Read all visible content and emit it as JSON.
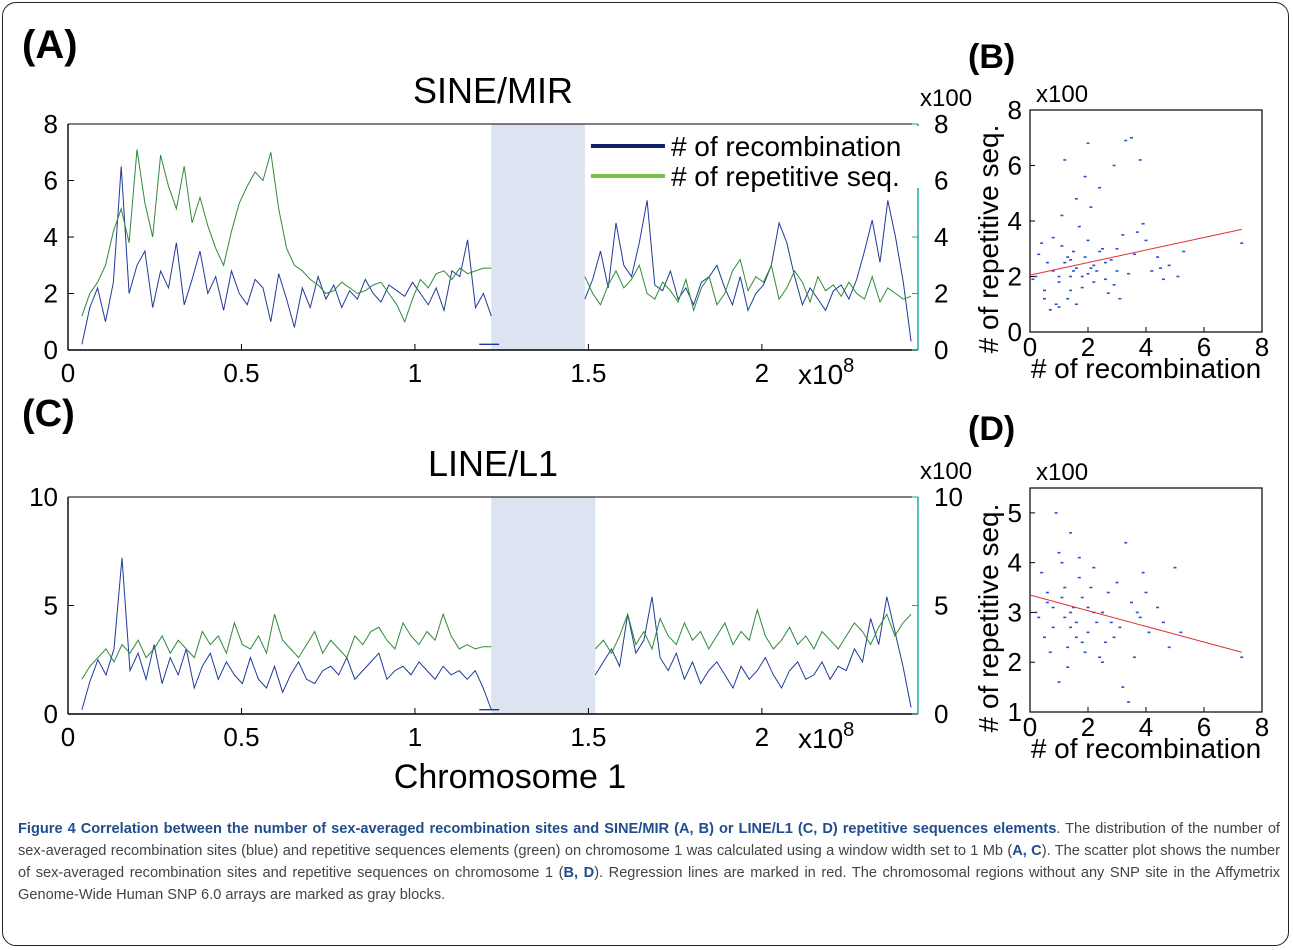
{
  "panel_labels": {
    "a": "(A)",
    "b": "(B)",
    "c": "(C)",
    "d": "(D)"
  },
  "chrom_label": "Chromosome 1",
  "caption": {
    "title": "Figure 4 Correlation between the number of sex-averaged recombination sites and SINE/MIR (A, B) or LINE/L1 (C, D) repetitive sequences elements",
    "s1": ". The distribution of the number of sex-averaged recombination sites (blue) and repetitive sequences elements (green) on chromosome 1 was calculated using a window width set to 1 Mb (",
    "b1": "A, C",
    "s2": "). The scatter plot shows the number of sex-averaged recombination sites and repetitive sequences on chromosome 1 (",
    "b2": "B, D",
    "s3": "). Regression lines are marked in red. The chromosomal regions without any SNP site in the Affymetrix Genome-Wide Human SNP 6.0 arrays are marked as gray blocks."
  },
  "colors": {
    "recombination": "#1f3b9a",
    "repetitive": "#2e8b3a",
    "gap": "#dbe4f0",
    "regression": "#e03030",
    "legend_blue": "#13206b",
    "legend_green": "#7cc24a",
    "right_axis": "#1aa0a0"
  },
  "chart_data": [
    {
      "id": "A",
      "type": "line",
      "title": "SINE/MIR",
      "x_ticks": [
        "0",
        "0.5",
        "1",
        "1.5",
        "2"
      ],
      "x_multiplier": "x10",
      "x_multiplier_exp": "8",
      "xlim": [
        0,
        245000000.0
      ],
      "x_tick_values": [
        0,
        50000000.0,
        100000000.0,
        150000000.0,
        200000000.0
      ],
      "ylim_left": [
        0,
        8
      ],
      "y_left_ticks": [
        "0",
        "2",
        "4",
        "6",
        "8"
      ],
      "ylim_right": [
        0,
        800
      ],
      "y_right_ticks": [
        "0",
        "2",
        "4",
        "6",
        "8"
      ],
      "y_right_multiplier": "x100",
      "gap": [
        122000000.0,
        149000000.0
      ],
      "legend": [
        "# of recombination",
        "# of repetitive seq."
      ],
      "legend_position": "top-right",
      "series": [
        {
          "name": "# of recombination",
          "x_start": 4000000.0,
          "x_end": 243000000.0,
          "values": [
            0.2,
            1.5,
            2.2,
            1.0,
            2.4,
            6.5,
            2.0,
            3.0,
            3.5,
            1.5,
            2.8,
            2.2,
            3.8,
            1.6,
            2.5,
            3.5,
            2.0,
            2.6,
            1.4,
            2.8,
            2.0,
            1.6,
            2.5,
            2.2,
            1.0,
            2.7,
            1.8,
            0.8,
            2.2,
            1.5,
            2.6,
            1.8,
            2.3,
            1.5,
            2.1,
            1.8,
            2.5,
            2.0,
            1.7,
            2.3,
            2.1,
            1.9,
            2.4,
            2.0,
            1.6,
            2.2,
            1.4,
            2.8,
            2.6,
            3.9,
            1.5,
            2.0,
            1.2
          ],
          "seg2_x_start": 149000000.0,
          "seg2_values": [
            1.8,
            2.5,
            3.5,
            2.2,
            4.5,
            3.0,
            2.6,
            3.8,
            5.3,
            2.3,
            2.1,
            2.8,
            1.8,
            2.2,
            1.6,
            2.4,
            2.6,
            3.0,
            2.2,
            1.6,
            2.6,
            1.4,
            2.0,
            2.3,
            3.0,
            4.5,
            3.8,
            2.6,
            1.6,
            2.2,
            1.8,
            1.4,
            2.1,
            2.3,
            1.8,
            2.5,
            3.5,
            4.6,
            3.1,
            5.3,
            4.0,
            2.4,
            0.3
          ]
        },
        {
          "name": "# of repetitive seq.",
          "x_start": 4000000.0,
          "x_end": 243000000.0,
          "values": [
            1.2,
            2.0,
            2.4,
            3.0,
            4.2,
            5.0,
            3.8,
            7.1,
            5.2,
            4.0,
            6.9,
            5.8,
            5.0,
            6.5,
            4.5,
            5.4,
            4.4,
            3.6,
            3.0,
            4.2,
            5.2,
            5.8,
            6.3,
            6.0,
            7.0,
            5.0,
            3.6,
            3.0,
            2.8,
            2.5,
            2.3,
            2.0,
            2.1,
            2.4,
            2.2,
            2.0,
            2.1,
            2.3,
            2.4,
            2.0,
            1.6,
            1.0,
            1.8,
            2.5,
            2.2,
            2.7,
            2.8,
            2.5,
            2.9,
            2.7,
            2.8,
            2.9,
            2.9
          ],
          "seg2_x_start": 149000000.0,
          "seg2_values": [
            2.6,
            2.0,
            1.6,
            2.3,
            2.8,
            2.2,
            2.5,
            3.0,
            2.0,
            1.8,
            2.4,
            2.1,
            1.7,
            2.5,
            1.4,
            2.2,
            2.6,
            1.6,
            2.0,
            2.8,
            3.2,
            2.1,
            2.6,
            2.4,
            3.0,
            1.8,
            2.2,
            2.8,
            2.4,
            1.7,
            2.6,
            2.1,
            2.3,
            1.9,
            2.4,
            2.0,
            1.8,
            2.6,
            1.7,
            2.2,
            2.0,
            1.8,
            1.9
          ]
        }
      ]
    },
    {
      "id": "B",
      "type": "scatter",
      "x_ticks": [
        "0",
        "2",
        "4",
        "6",
        "8"
      ],
      "xlim": [
        0,
        8
      ],
      "y_ticks": [
        "0",
        "2",
        "4",
        "6",
        "8"
      ],
      "ylim": [
        0,
        8
      ],
      "y_multiplier": "x100",
      "xlabel": "# of recombination",
      "ylabel": "# of repetitive seq.",
      "regression": {
        "x": [
          0,
          7.3
        ],
        "y": [
          2.05,
          3.7
        ]
      },
      "points": [
        [
          0.3,
          2.8
        ],
        [
          0.5,
          1.5
        ],
        [
          0.8,
          2.2
        ],
        [
          1.0,
          1.8
        ],
        [
          1.2,
          2.5
        ],
        [
          1.4,
          2.0
        ],
        [
          1.6,
          2.3
        ],
        [
          1.8,
          1.6
        ],
        [
          2.0,
          2.1
        ],
        [
          2.2,
          2.4
        ],
        [
          1.1,
          3.1
        ],
        [
          1.5,
          2.9
        ],
        [
          1.9,
          2.7
        ],
        [
          2.3,
          2.2
        ],
        [
          2.6,
          1.9
        ],
        [
          1.3,
          1.2
        ],
        [
          0.9,
          1.0
        ],
        [
          0.6,
          2.5
        ],
        [
          1.7,
          3.8
        ],
        [
          2.1,
          4.5
        ],
        [
          0.7,
          0.8
        ],
        [
          1.0,
          0.9
        ],
        [
          1.4,
          1.5
        ],
        [
          2.5,
          3.0
        ],
        [
          2.8,
          2.6
        ],
        [
          3.0,
          2.2
        ],
        [
          3.3,
          6.9
        ],
        [
          3.5,
          7.0
        ],
        [
          2.4,
          5.2
        ],
        [
          1.2,
          6.2
        ],
        [
          1.6,
          4.8
        ],
        [
          0.4,
          3.2
        ],
        [
          3.8,
          6.2
        ],
        [
          2.0,
          6.8
        ],
        [
          2.9,
          6.0
        ],
        [
          1.9,
          5.6
        ],
        [
          3.2,
          3.5
        ],
        [
          3.6,
          2.8
        ],
        [
          4.0,
          3.3
        ],
        [
          4.4,
          2.7
        ],
        [
          4.8,
          2.4
        ],
        [
          5.1,
          2.0
        ],
        [
          5.3,
          2.9
        ],
        [
          7.3,
          3.2
        ],
        [
          4.6,
          1.9
        ],
        [
          3.1,
          1.2
        ],
        [
          2.7,
          1.4
        ],
        [
          0.2,
          2.0
        ],
        [
          0.1,
          1.9
        ],
        [
          1.5,
          2.2
        ],
        [
          1.8,
          2.0
        ],
        [
          2.2,
          1.8
        ],
        [
          1.3,
          2.7
        ],
        [
          2.6,
          2.5
        ],
        [
          3.4,
          2.1
        ],
        [
          3.9,
          3.9
        ],
        [
          4.2,
          2.2
        ],
        [
          0.8,
          3.4
        ],
        [
          1.1,
          4.2
        ],
        [
          2.0,
          3.3
        ],
        [
          2.4,
          2.9
        ],
        [
          1.6,
          1.0
        ],
        [
          2.9,
          1.7
        ],
        [
          0.5,
          1.2
        ],
        [
          1.0,
          2.0
        ],
        [
          1.4,
          2.6
        ],
        [
          2.1,
          2.3
        ],
        [
          3.0,
          3.0
        ],
        [
          3.7,
          3.6
        ],
        [
          4.5,
          2.3
        ]
      ]
    },
    {
      "id": "C",
      "type": "line",
      "title": "LINE/L1",
      "x_ticks": [
        "0",
        "0.5",
        "1",
        "1.5",
        "2"
      ],
      "x_multiplier": "x10",
      "x_multiplier_exp": "8",
      "xlim": [
        0,
        245000000.0
      ],
      "x_tick_values": [
        0,
        50000000.0,
        100000000.0,
        150000000.0,
        200000000.0
      ],
      "ylim_left": [
        0,
        10
      ],
      "y_left_ticks": [
        "0",
        "5",
        "10"
      ],
      "ylim_right": [
        0,
        1000
      ],
      "y_right_ticks": [
        "0",
        "5",
        "10"
      ],
      "y_right_multiplier": "x100",
      "gap": [
        122000000.0,
        152000000.0
      ],
      "series": [
        {
          "name": "recombination",
          "x_start": 4000000.0,
          "x_end": 243000000.0,
          "values": [
            0.2,
            1.5,
            2.5,
            1.8,
            3.0,
            7.2,
            2.0,
            2.8,
            1.6,
            3.2,
            1.4,
            2.6,
            1.8,
            3.0,
            1.2,
            2.2,
            2.8,
            1.6,
            2.4,
            1.8,
            1.4,
            2.6,
            1.6,
            1.2,
            2.2,
            1.0,
            1.8,
            2.4,
            1.6,
            1.4,
            2.0,
            2.2,
            1.8,
            2.6,
            1.6,
            2.0,
            2.4,
            2.8,
            1.6,
            2.0,
            2.2,
            1.8,
            2.4,
            2.0,
            1.6,
            2.2,
            1.8,
            2.0,
            1.6,
            2.0,
            1.2,
            0.2
          ],
          "seg2_x_start": 152000000.0,
          "seg2_values": [
            1.8,
            2.4,
            3.0,
            2.2,
            4.6,
            2.8,
            3.4,
            5.4,
            2.6,
            2.0,
            2.8,
            1.6,
            2.4,
            1.4,
            2.0,
            2.4,
            1.8,
            1.2,
            2.2,
            1.6,
            2.0,
            2.6,
            1.8,
            1.2,
            2.0,
            2.4,
            1.6,
            1.8,
            2.4,
            1.6,
            2.2,
            2.0,
            3.0,
            2.4,
            4.4,
            3.2,
            5.4,
            3.8,
            2.2,
            0.3
          ]
        },
        {
          "name": "repetitive",
          "x_start": 4000000.0,
          "x_end": 243000000.0,
          "values": [
            1.6,
            2.2,
            2.6,
            3.0,
            2.4,
            3.2,
            2.8,
            3.4,
            2.6,
            3.0,
            3.6,
            2.8,
            3.4,
            3.0,
            2.6,
            3.8,
            3.2,
            3.6,
            2.8,
            4.2,
            3.2,
            3.0,
            3.6,
            2.8,
            4.6,
            3.4,
            3.0,
            2.6,
            3.2,
            3.8,
            2.8,
            3.4,
            3.0,
            2.6,
            3.6,
            3.2,
            3.8,
            4.0,
            3.4,
            3.0,
            4.2,
            3.6,
            3.2,
            3.8,
            3.4,
            4.6,
            3.6,
            3.0,
            3.2,
            3.0,
            3.1,
            3.1
          ],
          "seg2_x_start": 152000000.0,
          "seg2_values": [
            3.0,
            3.4,
            2.8,
            3.6,
            4.6,
            3.2,
            3.8,
            3.0,
            4.4,
            3.6,
            3.2,
            4.2,
            3.4,
            3.8,
            3.0,
            3.6,
            4.2,
            3.2,
            3.8,
            3.4,
            4.8,
            3.6,
            3.0,
            3.4,
            4.0,
            3.2,
            3.6,
            3.0,
            3.8,
            3.4,
            3.0,
            3.6,
            4.2,
            3.8,
            3.2,
            4.0,
            4.6,
            3.6,
            4.2,
            4.6
          ]
        }
      ]
    },
    {
      "id": "D",
      "type": "scatter",
      "x_ticks": [
        "0",
        "2",
        "4",
        "6",
        "8"
      ],
      "xlim": [
        0,
        8
      ],
      "y_ticks": [
        "1",
        "2",
        "3",
        "4",
        "5"
      ],
      "ylim": [
        1,
        5.5
      ],
      "y_multiplier": "x100",
      "xlabel": "# of recombination",
      "ylabel": "# of repetitive seq.",
      "regression": {
        "x": [
          0,
          7.3
        ],
        "y": [
          3.35,
          2.2
        ]
      },
      "points": [
        [
          0.2,
          3.0
        ],
        [
          0.4,
          3.8
        ],
        [
          0.6,
          3.2
        ],
        [
          0.8,
          2.7
        ],
        [
          1.0,
          4.2
        ],
        [
          1.2,
          3.5
        ],
        [
          1.4,
          3.0
        ],
        [
          1.6,
          2.8
        ],
        [
          1.8,
          3.3
        ],
        [
          2.0,
          2.6
        ],
        [
          2.2,
          3.0
        ],
        [
          0.9,
          5.0
        ],
        [
          1.4,
          4.6
        ],
        [
          1.1,
          4.0
        ],
        [
          1.7,
          3.7
        ],
        [
          2.1,
          3.5
        ],
        [
          2.5,
          3.0
        ],
        [
          2.8,
          2.8
        ],
        [
          3.0,
          3.6
        ],
        [
          3.3,
          4.4
        ],
        [
          3.5,
          3.2
        ],
        [
          3.8,
          2.9
        ],
        [
          4.1,
          2.6
        ],
        [
          4.4,
          3.1
        ],
        [
          4.8,
          2.3
        ],
        [
          5.2,
          2.6
        ],
        [
          7.3,
          2.1
        ],
        [
          0.5,
          2.5
        ],
        [
          1.3,
          2.3
        ],
        [
          1.9,
          2.2
        ],
        [
          2.4,
          2.1
        ],
        [
          2.6,
          2.4
        ],
        [
          3.2,
          1.5
        ],
        [
          3.4,
          1.2
        ],
        [
          1.0,
          1.6
        ],
        [
          0.7,
          2.2
        ],
        [
          1.5,
          3.1
        ],
        [
          1.6,
          2.5
        ],
        [
          2.3,
          2.8
        ],
        [
          2.7,
          3.4
        ],
        [
          3.1,
          2.7
        ],
        [
          3.6,
          2.1
        ],
        [
          4.0,
          3.4
        ],
        [
          4.6,
          2.8
        ],
        [
          1.2,
          2.9
        ],
        [
          0.3,
          2.9
        ],
        [
          1.8,
          2.4
        ],
        [
          2.0,
          3.1
        ],
        [
          2.9,
          2.5
        ],
        [
          3.7,
          3.0
        ],
        [
          1.1,
          3.3
        ],
        [
          1.4,
          2.7
        ],
        [
          0.6,
          3.4
        ],
        [
          2.2,
          3.9
        ],
        [
          1.7,
          4.1
        ],
        [
          2.5,
          2.0
        ],
        [
          1.3,
          1.9
        ],
        [
          0.8,
          3.1
        ],
        [
          3.9,
          3.8
        ],
        [
          5.0,
          3.9
        ]
      ]
    }
  ]
}
